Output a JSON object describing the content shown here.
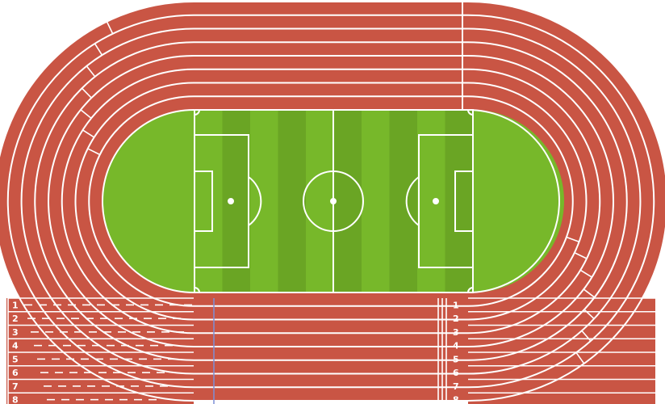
{
  "track": {
    "lane_count": 8,
    "lane_labels": [
      "1",
      "2",
      "3",
      "4",
      "5",
      "6",
      "7",
      "8"
    ]
  },
  "colors": {
    "track": "#c95544",
    "lines": "#ffffff",
    "grass_light": "#77b82a",
    "grass_dark": "#6aa524",
    "blue_line": "#7d8fd6",
    "background": "#ffffff"
  }
}
